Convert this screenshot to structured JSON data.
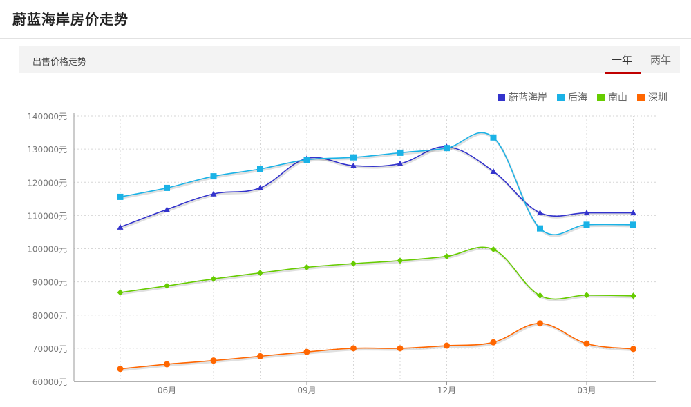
{
  "page": {
    "title": "蔚蓝海岸房价走势"
  },
  "tabbar": {
    "label": "出售价格走势",
    "tabs": [
      {
        "label": "一年",
        "active": true
      },
      {
        "label": "两年",
        "active": false
      }
    ]
  },
  "chart_data": {
    "type": "line",
    "ylim": [
      60000,
      140000
    ],
    "y_ticks": [
      "60000元",
      "70000元",
      "80000元",
      "90000元",
      "100000元",
      "110000元",
      "120000元",
      "130000元",
      "140000元"
    ],
    "x_tick_labels": [
      {
        "index": 1,
        "label": "06月"
      },
      {
        "index": 4,
        "label": "09月"
      },
      {
        "index": 7,
        "label": "12月"
      },
      {
        "index": 10,
        "label": "03月"
      }
    ],
    "grid": true,
    "legend_position": "top-right",
    "series": [
      {
        "name": "蔚蓝海岸",
        "color": "#3333cc",
        "marker": "triangle",
        "values": [
          106500,
          111800,
          116500,
          118300,
          127200,
          125000,
          125600,
          130700,
          123300,
          110800,
          110800,
          110800
        ]
      },
      {
        "name": "后海",
        "color": "#1ab2e6",
        "marker": "square",
        "values": [
          115600,
          118300,
          121800,
          124000,
          126800,
          127500,
          128900,
          130300,
          133500,
          106100,
          107200,
          107200
        ]
      },
      {
        "name": "南山",
        "color": "#66cc00",
        "marker": "diamond",
        "values": [
          86800,
          88800,
          90900,
          92700,
          94400,
          95500,
          96400,
          97700,
          99800,
          85900,
          86000,
          85800
        ]
      },
      {
        "name": "深圳",
        "color": "#ff6600",
        "marker": "circle",
        "values": [
          63800,
          65200,
          66300,
          67600,
          68900,
          70000,
          70000,
          70800,
          71800,
          77500,
          71400,
          69800
        ]
      }
    ]
  }
}
